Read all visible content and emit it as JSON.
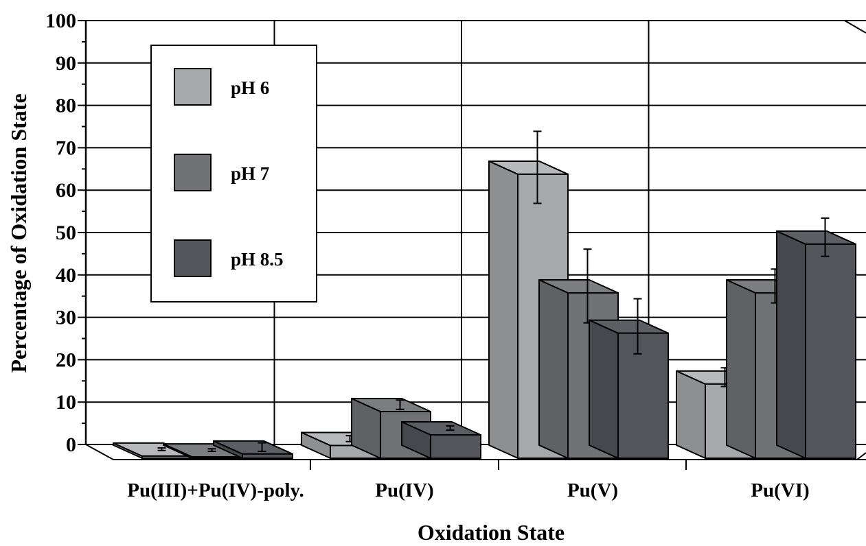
{
  "chart_data": {
    "type": "bar",
    "title": "",
    "xlabel": "Oxidation State",
    "ylabel": "Percentage of Oxidation State",
    "ylim": [
      0,
      100
    ],
    "yticks": [
      0,
      10,
      20,
      30,
      40,
      50,
      60,
      70,
      80,
      90,
      100
    ],
    "categories": [
      "Pu(III)+Pu(IV)-poly.",
      "Pu(IV)",
      "Pu(V)",
      "Pu(VI)"
    ],
    "series": [
      {
        "name": "pH 6",
        "values": [
          0.5,
          3,
          67,
          17.5
        ],
        "errors": [
          0.3,
          0.7,
          8.5,
          2.2
        ],
        "color": "#a7a8ab"
      },
      {
        "name": "pH 7",
        "values": [
          0.3,
          11,
          39,
          39
        ],
        "errors": [
          0.3,
          1.1,
          8.7,
          4
        ],
        "color": "#717275"
      },
      {
        "name": "pH 8.5",
        "values": [
          1,
          5.5,
          29.5,
          50.5
        ],
        "errors": [
          1,
          0.5,
          6.5,
          4.5
        ],
        "color": "#54555a"
      }
    ],
    "grid": true,
    "legend_position": "top-left",
    "style": "3d-bars"
  }
}
